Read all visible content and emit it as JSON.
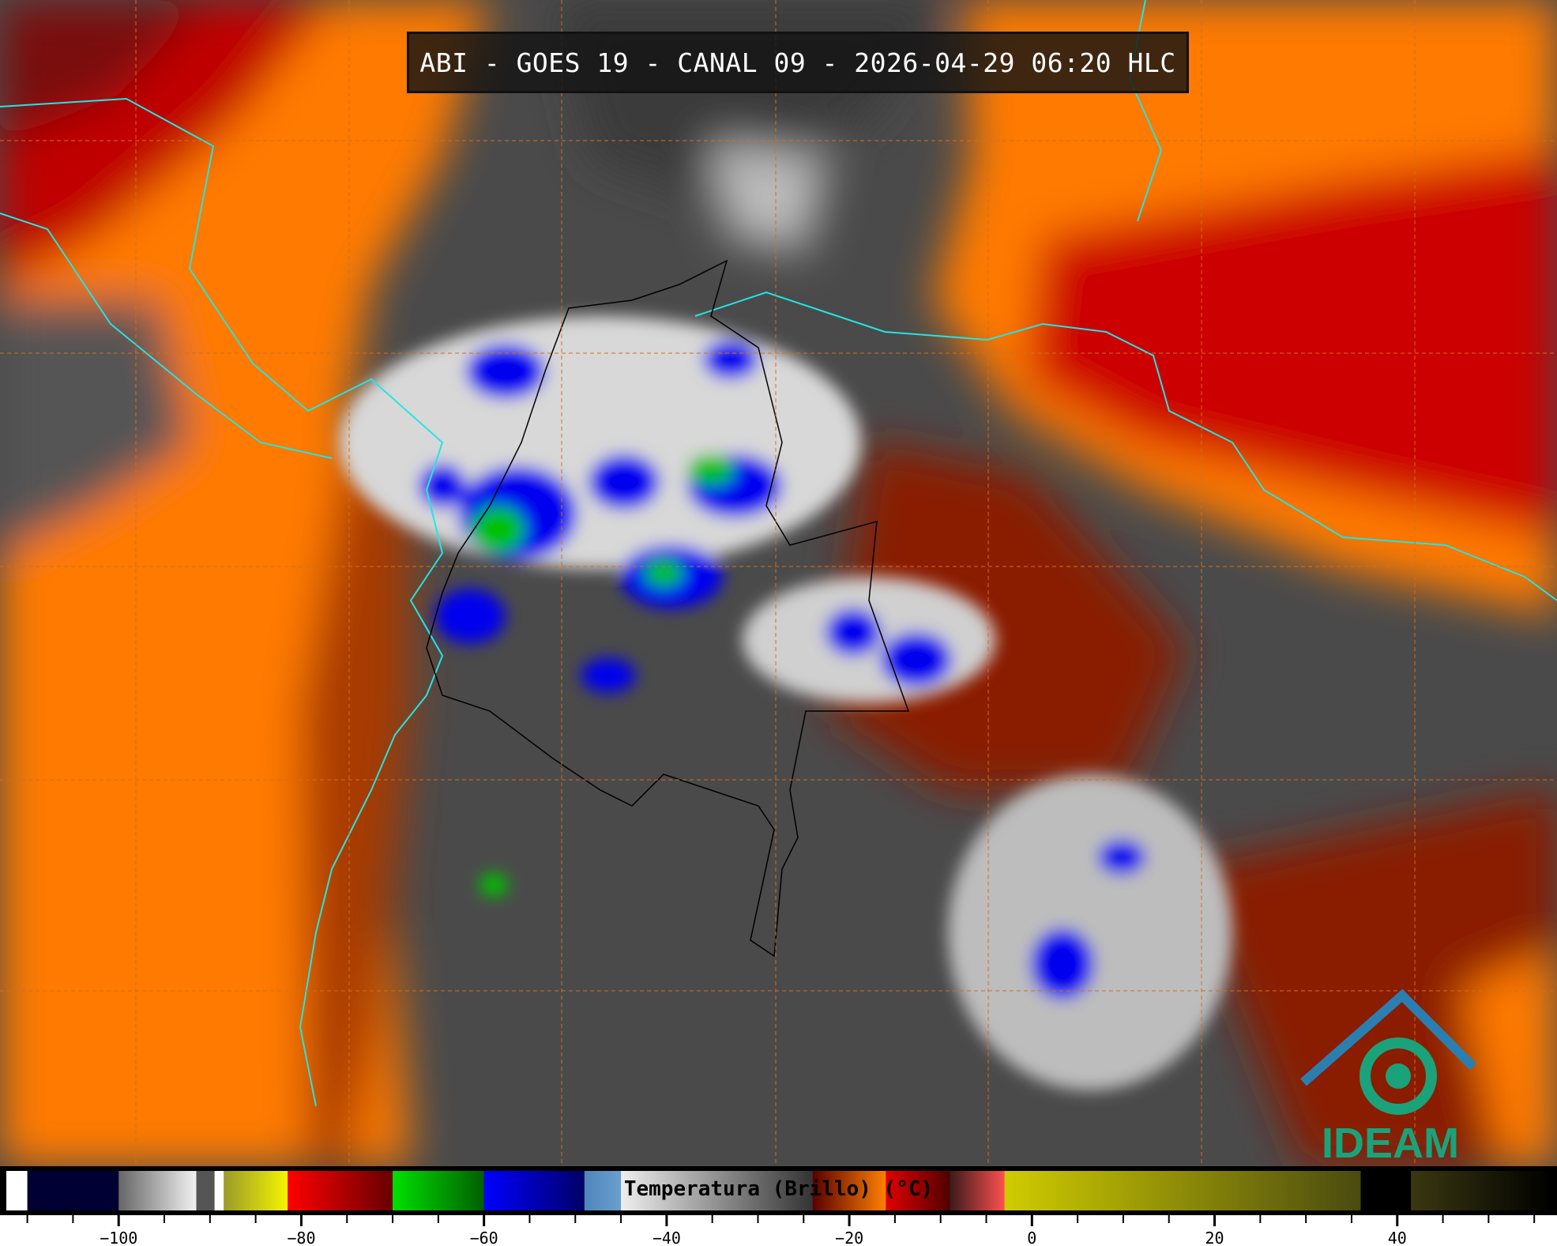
{
  "title": "ABI - GOES 19 - CANAL 09 - 2026-04-29 06:20 HLC",
  "logo": {
    "text": "IDEAM",
    "color": "#1aa37a",
    "roof_color": "#2a7fb0"
  },
  "colorbar": {
    "label": "Temperatura (Brillo) (°C)",
    "range": [
      -112.3,
      56.8
    ],
    "major_ticks": [
      -100,
      -80,
      -60,
      -40,
      -20,
      0,
      20,
      40
    ],
    "minor_tick_step": 5,
    "segments": [
      {
        "from": -112.3,
        "to": -110,
        "colors": [
          "#ffffff",
          "#ffffff"
        ]
      },
      {
        "from": -110,
        "to": -100,
        "colors": [
          "#000033",
          "#000033"
        ]
      },
      {
        "from": -100,
        "to": -91.5,
        "colors": [
          "#666666",
          "#f2f2f2"
        ]
      },
      {
        "from": -91.5,
        "to": -89.5,
        "colors": [
          "#555555",
          "#555555"
        ]
      },
      {
        "from": -89.5,
        "to": -88.5,
        "colors": [
          "#ffffff",
          "#ffffff"
        ]
      },
      {
        "from": -88.5,
        "to": -81.5,
        "colors": [
          "#9a9a2a",
          "#f5f500"
        ]
      },
      {
        "from": -81.5,
        "to": -70,
        "colors": [
          "#ff0000",
          "#660000"
        ]
      },
      {
        "from": -70,
        "to": -60,
        "colors": [
          "#00e000",
          "#005f00"
        ]
      },
      {
        "from": -60,
        "to": -49,
        "colors": [
          "#0000ff",
          "#000066"
        ]
      },
      {
        "from": -49,
        "to": -45,
        "colors": [
          "#4f86b8",
          "#6a9fd0"
        ]
      },
      {
        "from": -45,
        "to": -24,
        "colors": [
          "#eeeeee",
          "#333333"
        ]
      },
      {
        "from": -24,
        "to": -16,
        "colors": [
          "#5a0000",
          "#ff8000"
        ]
      },
      {
        "from": -16,
        "to": -9,
        "colors": [
          "#e00000",
          "#500000"
        ]
      },
      {
        "from": -9,
        "to": -3,
        "colors": [
          "#3a1a1a",
          "#ff5050"
        ]
      },
      {
        "from": -3,
        "to": 36,
        "colors": [
          "#d0cc00",
          "#4a4a10"
        ]
      },
      {
        "from": 36,
        "to": 41.5,
        "colors": [
          "#000000",
          "#000000"
        ]
      },
      {
        "from": 41.5,
        "to": 56.8,
        "colors": [
          "#3a3810",
          "#000000"
        ]
      }
    ]
  },
  "colors": {
    "coastline": "#22e5e5",
    "grid": "#d07020",
    "borders": "#000000"
  }
}
